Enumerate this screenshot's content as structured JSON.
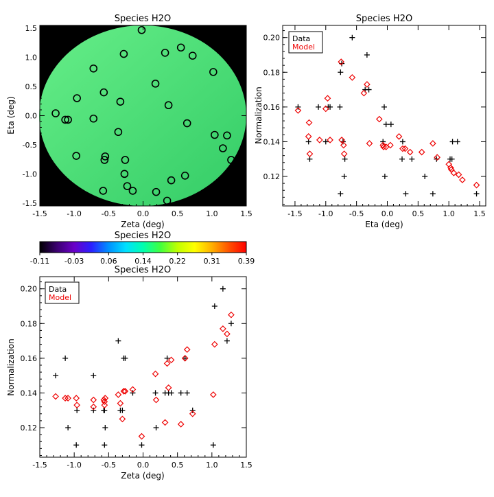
{
  "chart_data": [
    {
      "id": "map",
      "type": "scatter",
      "title": "Species H2O",
      "xlabel": "Zeta (deg)",
      "ylabel": "Eta (deg)",
      "xlim": [
        -1.5,
        1.5
      ],
      "ylim": [
        -1.55,
        1.55
      ],
      "xticks": [
        "-1.5",
        "-1.0",
        "-0.5",
        "0.0",
        "0.5",
        "1.0",
        "1.5"
      ],
      "yticks": [
        "-1.5",
        "-1.0",
        "-0.5",
        "0.0",
        "0.5",
        "1.0",
        "1.5"
      ],
      "background_color": "#000000",
      "disk_color_light": "#66ee88",
      "disk_color_dark": "#33cc66",
      "marker": "open-circle",
      "points": [
        [
          -0.02,
          1.47
        ],
        [
          -0.28,
          1.06
        ],
        [
          0.32,
          1.08
        ],
        [
          0.55,
          1.17
        ],
        [
          0.72,
          1.03
        ],
        [
          -0.72,
          0.81
        ],
        [
          1.02,
          0.75
        ],
        [
          0.18,
          0.55
        ],
        [
          -0.57,
          0.4
        ],
        [
          -0.96,
          0.3
        ],
        [
          -0.33,
          0.24
        ],
        [
          0.37,
          0.18
        ],
        [
          -1.27,
          0.04
        ],
        [
          -1.13,
          -0.07
        ],
        [
          -1.09,
          -0.07
        ],
        [
          -0.72,
          -0.05
        ],
        [
          0.64,
          -0.13
        ],
        [
          -0.36,
          -0.28
        ],
        [
          1.04,
          -0.33
        ],
        [
          1.22,
          -0.34
        ],
        [
          1.16,
          -0.56
        ],
        [
          -0.97,
          -0.69
        ],
        [
          -0.55,
          -0.7
        ],
        [
          -0.56,
          -0.76
        ],
        [
          -0.26,
          -0.76
        ],
        [
          1.28,
          -0.76
        ],
        [
          -0.27,
          -1.0
        ],
        [
          0.61,
          -1.03
        ],
        [
          0.41,
          -1.11
        ],
        [
          -0.23,
          -1.21
        ],
        [
          -0.15,
          -1.29
        ],
        [
          -0.58,
          -1.29
        ],
        [
          0.19,
          -1.31
        ],
        [
          0.35,
          -1.46
        ]
      ]
    },
    {
      "id": "colorbar",
      "type": "heatmap",
      "title": "Species H2O",
      "range": [
        -0.11,
        0.39
      ],
      "ticks": [
        "-0.11",
        "-0.03",
        "0.06",
        "0.14",
        "0.22",
        "0.31",
        "0.39"
      ],
      "colors": [
        "#000000",
        "#3b0070",
        "#6a00c8",
        "#2a20ff",
        "#0090ff",
        "#00e0ff",
        "#00ffb0",
        "#40ff40",
        "#c0ff00",
        "#ffff00",
        "#ffb000",
        "#ff5000",
        "#ff0000"
      ]
    },
    {
      "id": "eta",
      "type": "scatter",
      "title": "Species H2O",
      "xlabel": "Eta (deg)",
      "ylabel": "Normalization",
      "xlim": [
        -1.7,
        1.6
      ],
      "ylim": [
        0.103,
        0.207
      ],
      "xticks": [
        "-1.5",
        "-1.0",
        "-0.5",
        "0.0",
        "0.5",
        "1.0",
        "1.5"
      ],
      "yticks": [
        "0.12",
        "0.14",
        "0.16",
        "0.18",
        "0.20"
      ],
      "legend": [
        "Data",
        "Model"
      ],
      "legend_position": "top-left",
      "series": [
        {
          "name": "Data",
          "color": "#000000",
          "marker": "plus",
          "points": [
            [
              -1.45,
              0.16
            ],
            [
              -1.28,
              0.14
            ],
            [
              -1.26,
              0.13
            ],
            [
              -1.12,
              0.16
            ],
            [
              -1.0,
              0.14
            ],
            [
              -0.96,
              0.16
            ],
            [
              -0.93,
              0.16
            ],
            [
              -0.77,
              0.16
            ],
            [
              -0.76,
              0.18
            ],
            [
              -0.74,
              0.185
            ],
            [
              -0.76,
              0.11
            ],
            [
              -0.72,
              0.14
            ],
            [
              -0.7,
              0.12
            ],
            [
              -0.69,
              0.13
            ],
            [
              -0.57,
              0.2
            ],
            [
              -0.36,
              0.17
            ],
            [
              -0.33,
              0.19
            ],
            [
              -0.3,
              0.17
            ],
            [
              -0.07,
              0.14
            ],
            [
              -0.05,
              0.16
            ],
            [
              -0.02,
              0.15
            ],
            [
              0.06,
              0.15
            ],
            [
              -0.04,
              0.12
            ],
            [
              0.25,
              0.14
            ],
            [
              0.24,
              0.13
            ],
            [
              0.3,
              0.11
            ],
            [
              0.4,
              0.13
            ],
            [
              0.61,
              0.12
            ],
            [
              0.74,
              0.11
            ],
            [
              0.8,
              0.13
            ],
            [
              1.02,
              0.13
            ],
            [
              1.05,
              0.13
            ],
            [
              1.06,
              0.14
            ],
            [
              1.14,
              0.14
            ],
            [
              1.45,
              0.11
            ]
          ]
        },
        {
          "name": "Model",
          "color": "#ee0000",
          "marker": "open-diamond",
          "points": [
            [
              -1.45,
              0.158
            ],
            [
              -1.27,
              0.151
            ],
            [
              -1.28,
              0.143
            ],
            [
              -1.26,
              0.133
            ],
            [
              -1.1,
              0.141
            ],
            [
              -1.0,
              0.159
            ],
            [
              -0.97,
              0.165
            ],
            [
              -0.93,
              0.141
            ],
            [
              -0.75,
              0.186
            ],
            [
              -0.74,
              0.141
            ],
            [
              -0.71,
              0.138
            ],
            [
              -0.7,
              0.133
            ],
            [
              -0.57,
              0.177
            ],
            [
              -0.38,
              0.168
            ],
            [
              -0.33,
              0.173
            ],
            [
              -0.29,
              0.139
            ],
            [
              -0.13,
              0.153
            ],
            [
              -0.07,
              0.138
            ],
            [
              -0.06,
              0.137
            ],
            [
              -0.02,
              0.137
            ],
            [
              0.05,
              0.138
            ],
            [
              0.19,
              0.143
            ],
            [
              0.25,
              0.136
            ],
            [
              0.29,
              0.136
            ],
            [
              0.37,
              0.134
            ],
            [
              0.56,
              0.134
            ],
            [
              0.74,
              0.139
            ],
            [
              0.81,
              0.131
            ],
            [
              1.0,
              0.127
            ],
            [
              1.03,
              0.125
            ],
            [
              1.04,
              0.124
            ],
            [
              1.08,
              0.122
            ],
            [
              1.16,
              0.121
            ],
            [
              1.22,
              0.118
            ],
            [
              1.45,
              0.115
            ]
          ]
        }
      ]
    },
    {
      "id": "zeta",
      "type": "scatter",
      "title": "Species H2O",
      "xlabel": "Zeta (deg)",
      "ylabel": "Normalization",
      "xlim": [
        -1.5,
        1.5
      ],
      "ylim": [
        0.103,
        0.207
      ],
      "xticks": [
        "-1.5",
        "-1.0",
        "-0.5",
        "0.0",
        "0.5",
        "1.0",
        "1.5"
      ],
      "yticks": [
        "0.12",
        "0.14",
        "0.16",
        "0.18",
        "0.20"
      ],
      "legend": [
        "Data",
        "Model"
      ],
      "legend_position": "top-left",
      "series": [
        {
          "name": "Data",
          "color": "#000000",
          "marker": "plus",
          "points": [
            [
              -1.27,
              0.15
            ],
            [
              -1.13,
              0.16
            ],
            [
              -1.09,
              0.12
            ],
            [
              -0.97,
              0.11
            ],
            [
              -0.96,
              0.13
            ],
            [
              -0.72,
              0.15
            ],
            [
              -0.72,
              0.13
            ],
            [
              -0.57,
              0.13
            ],
            [
              -0.55,
              0.12
            ],
            [
              -0.56,
              0.11
            ],
            [
              -0.56,
              0.13
            ],
            [
              -0.36,
              0.17
            ],
            [
              -0.33,
              0.13
            ],
            [
              -0.28,
              0.16
            ],
            [
              -0.26,
              0.16
            ],
            [
              -0.3,
              0.13
            ],
            [
              -0.15,
              0.14
            ],
            [
              -0.02,
              0.11
            ],
            [
              0.19,
              0.12
            ],
            [
              0.18,
              0.14
            ],
            [
              0.32,
              0.14
            ],
            [
              0.35,
              0.16
            ],
            [
              0.37,
              0.14
            ],
            [
              0.41,
              0.14
            ],
            [
              0.55,
              0.14
            ],
            [
              0.61,
              0.16
            ],
            [
              0.64,
              0.14
            ],
            [
              0.72,
              0.13
            ],
            [
              1.02,
              0.11
            ],
            [
              1.04,
              0.19
            ],
            [
              1.16,
              0.2
            ],
            [
              1.22,
              0.17
            ],
            [
              1.28,
              0.18
            ]
          ]
        },
        {
          "name": "Model",
          "color": "#ee0000",
          "marker": "open-diamond",
          "points": [
            [
              -1.27,
              0.138
            ],
            [
              -1.13,
              0.137
            ],
            [
              -1.09,
              0.137
            ],
            [
              -0.97,
              0.137
            ],
            [
              -0.96,
              0.133
            ],
            [
              -0.72,
              0.136
            ],
            [
              -0.72,
              0.132
            ],
            [
              -0.57,
              0.136
            ],
            [
              -0.55,
              0.137
            ],
            [
              -0.56,
              0.135
            ],
            [
              -0.56,
              0.133
            ],
            [
              -0.36,
              0.139
            ],
            [
              -0.33,
              0.134
            ],
            [
              -0.28,
              0.141
            ],
            [
              -0.26,
              0.141
            ],
            [
              -0.3,
              0.125
            ],
            [
              -0.15,
              0.142
            ],
            [
              -0.02,
              0.115
            ],
            [
              0.18,
              0.151
            ],
            [
              0.19,
              0.136
            ],
            [
              0.32,
              0.123
            ],
            [
              0.35,
              0.157
            ],
            [
              0.37,
              0.143
            ],
            [
              0.41,
              0.159
            ],
            [
              0.55,
              0.122
            ],
            [
              0.61,
              0.16
            ],
            [
              0.64,
              0.165
            ],
            [
              0.72,
              0.128
            ],
            [
              1.02,
              0.139
            ],
            [
              1.04,
              0.168
            ],
            [
              1.16,
              0.177
            ],
            [
              1.22,
              0.174
            ],
            [
              1.28,
              0.185
            ]
          ]
        }
      ]
    }
  ]
}
